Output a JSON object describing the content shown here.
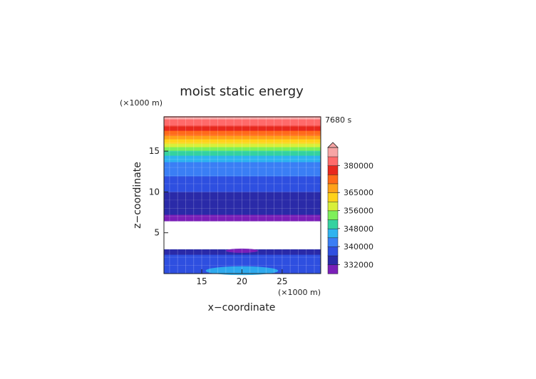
{
  "chart_data": {
    "type": "heatmap",
    "title": "moist static energy",
    "time_label": "7680 s",
    "xlabel": "x−coordinate",
    "ylabel": "z−coordinate",
    "x_unit_label": "(×1000 m)",
    "y_unit_label": "(×1000 m)",
    "xlim": [
      10.3,
      29.8
    ],
    "ylim": [
      0,
      19.2
    ],
    "x_ticks": [
      15,
      20,
      25
    ],
    "y_ticks": [
      5,
      10,
      15
    ],
    "grid": true,
    "missing_band_z": [
      3.0,
      6.5
    ],
    "levels": [
      328000,
      332000,
      336000,
      340000,
      344000,
      348000,
      352000,
      356000,
      360000,
      365000,
      370000,
      375000,
      380000,
      385000
    ],
    "colorbar_labels": [
      "332000",
      "340000",
      "348000",
      "356000",
      "365000",
      "380000"
    ],
    "colors": [
      "#7a1fb8",
      "#2a2aa8",
      "#2f4fe0",
      "#3a7ef5",
      "#2fb3ef",
      "#34d2a0",
      "#7ef05a",
      "#d8f03a",
      "#ffd21a",
      "#ffa21a",
      "#ff6a1a",
      "#e8281e",
      "#ff6b6b",
      "#f7a5a5"
    ],
    "profile": [
      {
        "z": 0.0,
        "v": 336500
      },
      {
        "z": 0.6,
        "v": 338000
      },
      {
        "z": 1.2,
        "v": 339000
      },
      {
        "z": 2.0,
        "v": 337500
      },
      {
        "z": 2.6,
        "v": 335000
      },
      {
        "z": 3.0,
        "v": 333000
      },
      {
        "z": 6.5,
        "v": 330500
      },
      {
        "z": 7.0,
        "v": 331500
      },
      {
        "z": 7.5,
        "v": 332500
      },
      {
        "z": 8.0,
        "v": 333000
      },
      {
        "z": 8.8,
        "v": 332500
      },
      {
        "z": 9.3,
        "v": 333500
      },
      {
        "z": 10.0,
        "v": 336000
      },
      {
        "z": 11.0,
        "v": 338000
      },
      {
        "z": 12.0,
        "v": 340000
      },
      {
        "z": 13.0,
        "v": 342000
      },
      {
        "z": 14.0,
        "v": 345000
      },
      {
        "z": 14.7,
        "v": 349000
      },
      {
        "z": 15.3,
        "v": 354000
      },
      {
        "z": 15.8,
        "v": 358000
      },
      {
        "z": 16.3,
        "v": 363000
      },
      {
        "z": 16.8,
        "v": 368000
      },
      {
        "z": 17.2,
        "v": 373000
      },
      {
        "z": 17.8,
        "v": 377000
      },
      {
        "z": 18.3,
        "v": 381000
      },
      {
        "z": 18.7,
        "v": 384000
      },
      {
        "z": 19.2,
        "v": 386000
      }
    ],
    "surface_blob": {
      "center_x": 20.0,
      "z_top": 0.9,
      "half_width": 4.5,
      "value": 345000
    },
    "inversion_dip": {
      "center_x": 20.0,
      "half_width": 2.0,
      "z": 2.8,
      "value": 330000
    }
  }
}
